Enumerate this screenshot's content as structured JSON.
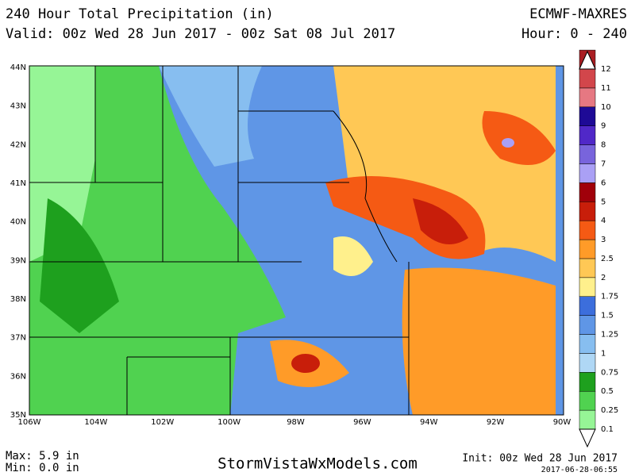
{
  "header": {
    "title": "240 Hour Total Precipitation (in)",
    "valid": "Valid: 00z Wed 28 Jun 2017 - 00z Sat 08 Jul 2017",
    "model": "ECMWF-MAXRES",
    "hours": "Hour: 0 - 240"
  },
  "map": {
    "lat_labels": [
      "44N",
      "43N",
      "42N",
      "41N",
      "40N",
      "39N",
      "38N",
      "37N",
      "36N",
      "35N"
    ],
    "lon_labels": [
      "106W",
      "104W",
      "102W",
      "100W",
      "98W",
      "96W",
      "94W",
      "92W",
      "90W"
    ]
  },
  "legend": {
    "levels": [
      "0.1",
      "0.25",
      "0.5",
      "0.75",
      "1",
      "1.25",
      "1.5",
      "1.75",
      "2",
      "2.5",
      "3",
      "4",
      "5",
      "6",
      "7",
      "8",
      "9",
      "10",
      "11",
      "12"
    ],
    "colors": [
      "#96f596",
      "#50d250",
      "#1ea01e",
      "#afd7f5",
      "#87bef0",
      "#5f96e6",
      "#3c6edc",
      "#fff08c",
      "#ffc855",
      "#ff9b28",
      "#f55a14",
      "#c81e0a",
      "#a0000a",
      "#aaa0f5",
      "#7864dc",
      "#5028c8",
      "#1e0a96",
      "#e67882",
      "#d2464b",
      "#aa1e23"
    ]
  },
  "footer": {
    "max": "Max: 5.9 in",
    "min": "Min: 0.0 in",
    "site": "StormVistaWxModels.com",
    "init": "Init: 00z Wed 28 Jun 2017",
    "stamp": "2017-06-28-06:55"
  }
}
